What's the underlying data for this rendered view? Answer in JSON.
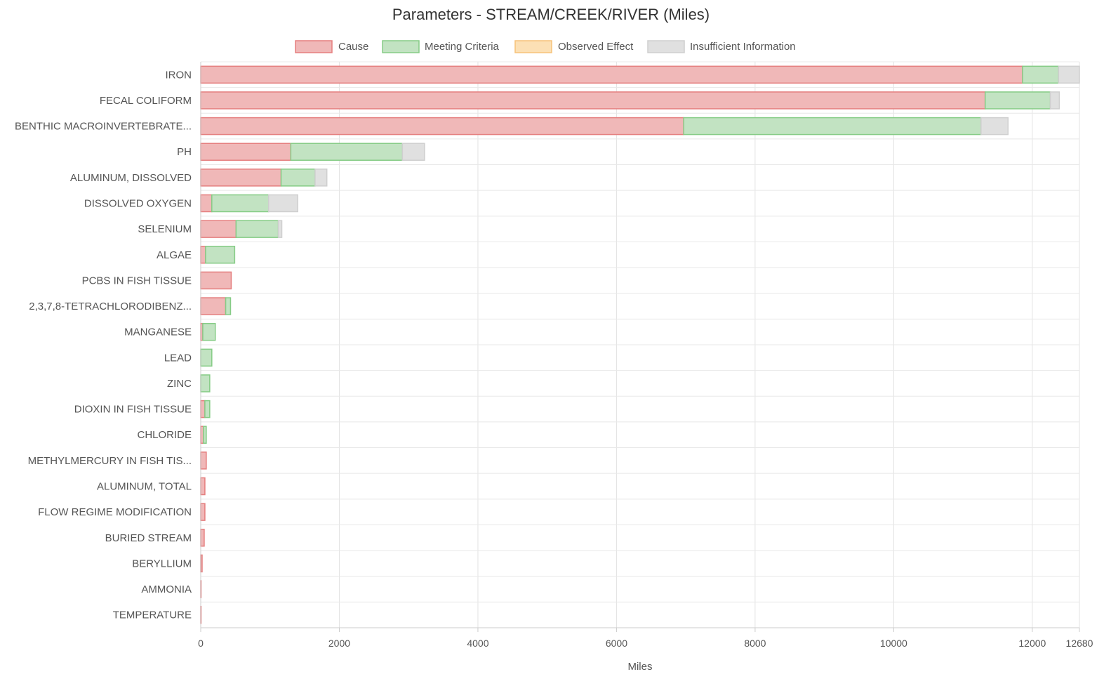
{
  "chart_data": {
    "type": "bar",
    "orientation": "horizontal",
    "stacked": true,
    "title": "Parameters - STREAM/CREEK/RIVER (Miles)",
    "xlabel": "Miles",
    "ylabel": "",
    "xlim": [
      0,
      12680
    ],
    "x_ticks": [
      "0",
      "2000",
      "4000",
      "6000",
      "8000",
      "10000",
      "12000",
      "12680"
    ],
    "x_tick_values": [
      0,
      2000,
      4000,
      6000,
      8000,
      10000,
      12000,
      12680
    ],
    "grid": true,
    "legend_position": "top-center",
    "categories": [
      "IRON",
      "FECAL COLIFORM",
      "BENTHIC MACROINVERTEBRATE...",
      "PH",
      "ALUMINUM, DISSOLVED",
      "DISSOLVED OXYGEN",
      "SELENIUM",
      "ALGAE",
      "PCBS IN FISH TISSUE",
      "2,3,7,8-TETRACHLORODIBENZ...",
      "MANGANESE",
      "LEAD",
      "ZINC",
      "DIOXIN IN FISH TISSUE",
      "CHLORIDE",
      "METHYLMERCURY IN FISH TIS...",
      "ALUMINUM, TOTAL",
      "FLOW REGIME MODIFICATION",
      "BURIED STREAM",
      "BERYLLIUM",
      "AMMONIA",
      "TEMPERATURE"
    ],
    "series": [
      {
        "name": "Cause",
        "fill": "#f0b8b8",
        "stroke": "#e57f7f",
        "values": [
          11860,
          11320,
          6970,
          1300,
          1160,
          160,
          510,
          70,
          440,
          360,
          30,
          0,
          0,
          60,
          40,
          80,
          60,
          60,
          50,
          20,
          5,
          3
        ]
      },
      {
        "name": "Meeting Criteria",
        "fill": "#c2e3c2",
        "stroke": "#86cc86",
        "values": [
          520,
          940,
          4290,
          1610,
          490,
          820,
          610,
          420,
          0,
          70,
          180,
          160,
          130,
          70,
          40,
          0,
          0,
          0,
          0,
          0,
          0,
          0
        ]
      },
      {
        "name": "Observed Effect",
        "fill": "#fce0b5",
        "stroke": "#f6c27a",
        "values": [
          0,
          0,
          0,
          0,
          0,
          0,
          0,
          0,
          0,
          0,
          0,
          0,
          0,
          0,
          0,
          0,
          0,
          0,
          0,
          0,
          0,
          0
        ]
      },
      {
        "name": "Insufficient Information",
        "fill": "#e0e0e0",
        "stroke": "#cfcfcf",
        "values": [
          300,
          130,
          390,
          320,
          170,
          420,
          50,
          0,
          0,
          0,
          0,
          0,
          0,
          0,
          0,
          0,
          0,
          0,
          0,
          0,
          0,
          0
        ]
      }
    ]
  }
}
